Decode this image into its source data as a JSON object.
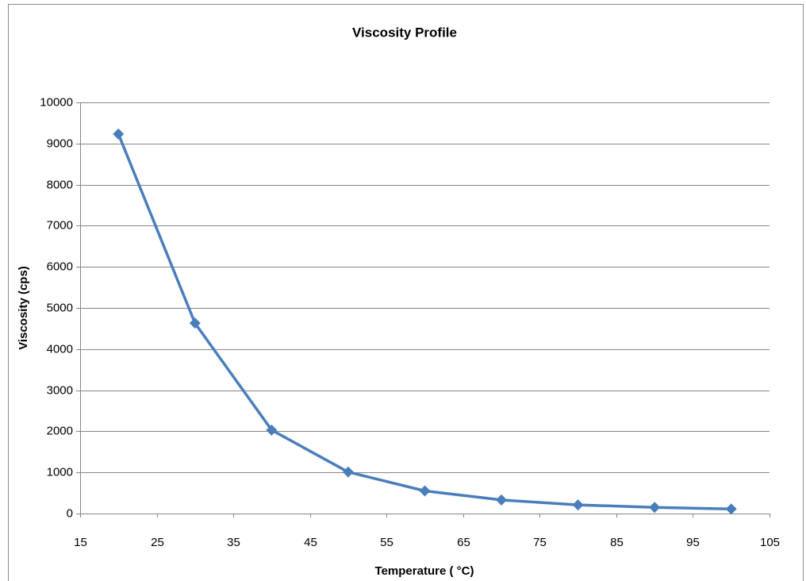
{
  "chart_data": {
    "type": "line",
    "title": "Viscosity Profile",
    "x_label": "Temperature ( °C)",
    "y_label": "Viscosity (cps)",
    "x": [
      20,
      30,
      40,
      50,
      60,
      70,
      80,
      90,
      100
    ],
    "values": [
      9230,
      4630,
      2030,
      1010,
      550,
      330,
      210,
      150,
      110
    ],
    "color": "#4a7ebb",
    "xlim": [
      15,
      105
    ],
    "xticks": [
      15,
      25,
      35,
      45,
      55,
      65,
      75,
      85,
      95,
      105
    ],
    "ylim": [
      0,
      10000
    ],
    "yticks": [
      0,
      1000,
      2000,
      3000,
      4000,
      5000,
      6000,
      7000,
      8000,
      9000,
      10000
    ],
    "grid": true
  }
}
